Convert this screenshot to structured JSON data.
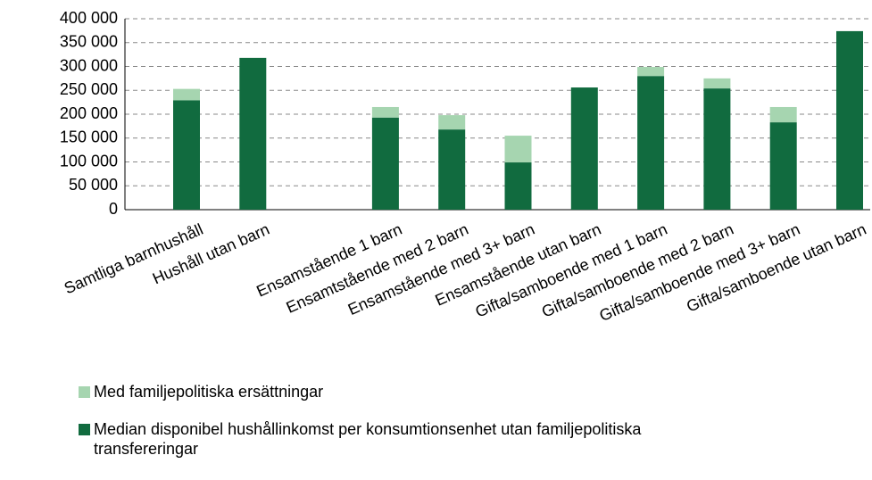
{
  "chart_data": {
    "type": "stacked_bar",
    "categories": [
      "Samtliga barnhushåll",
      "Hushåll utan barn",
      null,
      "Ensamstående 1 barn",
      "Ensamtstående med 2 barn",
      "Ensamstående med 3+ barn",
      "Ensamstående utan barn",
      "Gifta/samboende med 1 barn",
      "Gifta/samboende med 2 barn",
      "Gifta/samboende med 3+ barn",
      "Gifta/samboende utan barn"
    ],
    "series": [
      {
        "name": "Median disponibel hushållinkomst per konsumtionsenhet utan familjepolitiska transfereringar",
        "color": "#116b3f",
        "values": [
          229000,
          318000,
          null,
          193000,
          168000,
          99000,
          256000,
          280000,
          254000,
          183000,
          374000
        ]
      },
      {
        "name": "Med familjepolitiska ersättningar",
        "color": "#a6d5b0",
        "values": [
          24000,
          0,
          null,
          22000,
          30000,
          56000,
          0,
          19000,
          21000,
          32000,
          0
        ]
      }
    ],
    "ylim": [
      0,
      400000
    ],
    "yticks": [
      0,
      {
        "value": 50000,
        "label": "50 000"
      },
      {
        "value": 100000,
        "label": "100 000"
      },
      {
        "value": 150000,
        "label": "150 000"
      },
      {
        "value": 200000,
        "label": "200 000"
      },
      {
        "value": 250000,
        "label": "250 000"
      },
      {
        "value": 300000,
        "label": "300 000"
      },
      {
        "value": 350000,
        "label": "350 000"
      },
      {
        "value": 400000,
        "label": "400 000"
      }
    ],
    "grid": true
  }
}
